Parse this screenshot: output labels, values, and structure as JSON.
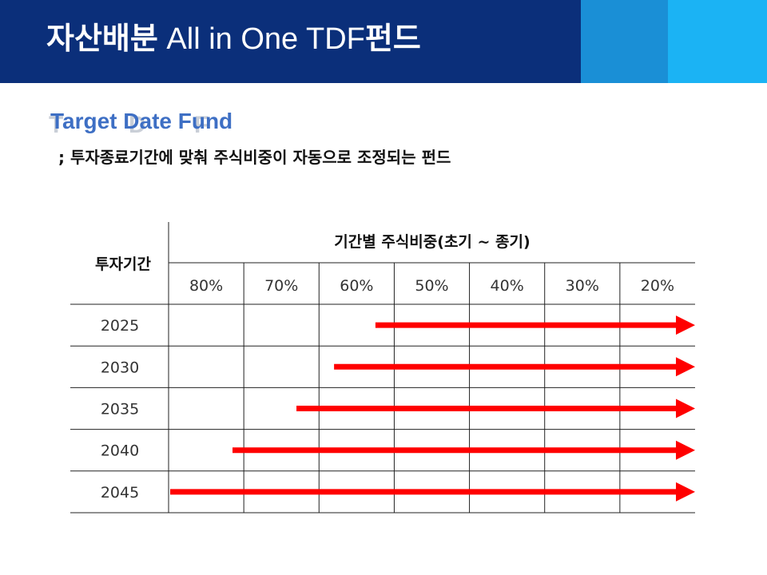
{
  "header": {
    "title_kr": "자산배분",
    "title_en": " All in One TDF",
    "title_kr_suffix": "펀드",
    "colors": {
      "navy": "#0b2f7a",
      "mid_blue": "#1a8fd6",
      "light_blue": "#1bb3f4"
    }
  },
  "subtitle": {
    "text": "Target Date Fund",
    "ghost_letters": [
      "T",
      "D",
      "F"
    ],
    "color": "#3e6fc4"
  },
  "definition": "; 투자종료기간에 맞춰 주식비중이 자동으로 조정되는 펀드",
  "table": {
    "row_header": "투자기간",
    "column_group_header": "기간별 주식비중(초기 ~ 종기)",
    "columns": [
      "80%",
      "70%",
      "60%",
      "50%",
      "40%",
      "30%",
      "20%"
    ],
    "rows": [
      {
        "year": "2025",
        "start_equity_pct": 57.5,
        "end_equity_pct": 20
      },
      {
        "year": "2030",
        "start_equity_pct": 63,
        "end_equity_pct": 20
      },
      {
        "year": "2035",
        "start_equity_pct": 68,
        "end_equity_pct": 20
      },
      {
        "year": "2040",
        "start_equity_pct": 76.5,
        "end_equity_pct": 20
      },
      {
        "year": "2045",
        "start_equity_pct": 85,
        "end_equity_pct": 20
      }
    ],
    "arrow_color": "#ff0000"
  }
}
